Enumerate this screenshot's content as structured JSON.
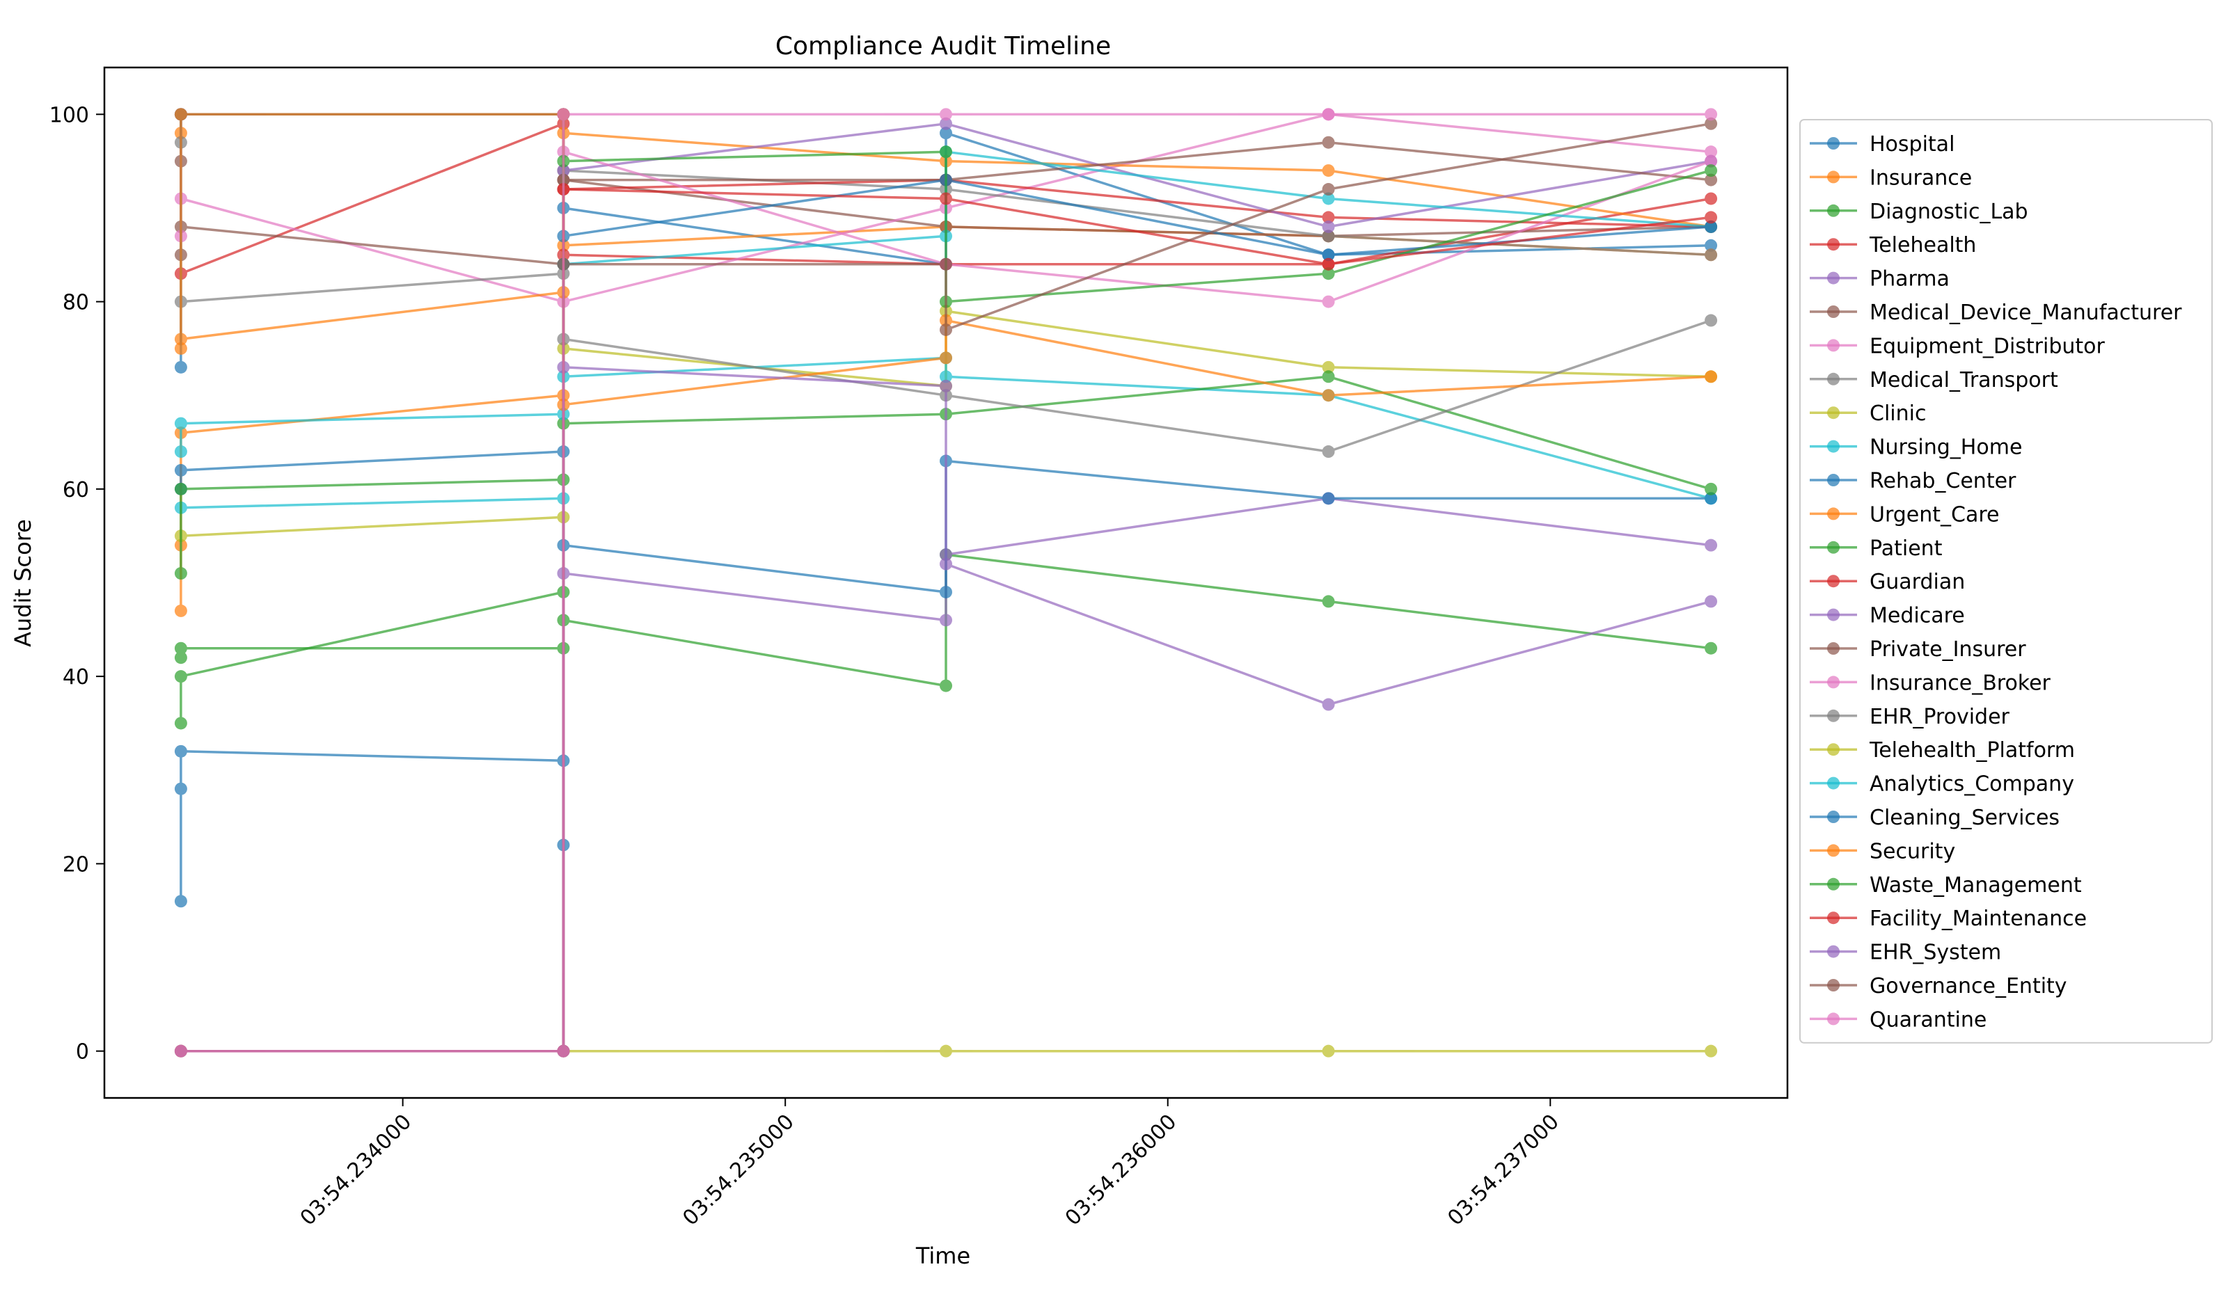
{
  "chart_data": {
    "type": "line",
    "title": "Compliance Audit Timeline",
    "xlabel": "Time",
    "ylabel": "Audit Score",
    "ylim": [
      -5,
      105
    ],
    "xlim": [
      -0.2,
      4.2
    ],
    "x_positions": [
      0,
      1,
      2,
      3,
      4
    ],
    "x_ticks": [
      {
        "value": 0.58,
        "label": "03:54.234000"
      },
      {
        "value": 1.58,
        "label": "03:54.235000"
      },
      {
        "value": 2.58,
        "label": "03:54.236000"
      },
      {
        "value": 3.58,
        "label": "03:54.237000"
      }
    ],
    "y_ticks": [
      0,
      20,
      40,
      60,
      80,
      100
    ],
    "grid": false,
    "legend_position": "right",
    "series": [
      {
        "name": "Hospital",
        "color": "#1f77b4",
        "points": [
          [
            0,
            16
          ],
          [
            0,
            28
          ],
          [
            0,
            32
          ],
          [
            1,
            31
          ],
          [
            1,
            22
          ],
          [
            1,
            0
          ],
          [
            1,
            90
          ],
          [
            2,
            84
          ],
          [
            2,
            98
          ],
          [
            3,
            85
          ],
          [
            4,
            86
          ]
        ]
      },
      {
        "name": "Insurance",
        "color": "#ff7f0e",
        "points": [
          [
            0,
            47
          ],
          [
            0,
            54
          ],
          [
            0,
            66
          ],
          [
            1,
            70
          ],
          [
            1,
            86
          ],
          [
            2,
            88
          ],
          [
            3,
            87
          ],
          [
            4,
            85
          ]
        ]
      },
      {
        "name": "Diagnostic_Lab",
        "color": "#2ca02c",
        "points": [
          [
            0,
            42
          ],
          [
            0,
            43
          ],
          [
            1,
            43
          ],
          [
            1,
            46
          ],
          [
            2,
            39
          ],
          [
            2,
            53
          ],
          [
            3,
            48
          ],
          [
            4,
            43
          ]
        ]
      },
      {
        "name": "Telehealth",
        "color": "#d62728",
        "points": [
          [
            0,
            83
          ],
          [
            1,
            99
          ],
          [
            1,
            85
          ],
          [
            2,
            84
          ],
          [
            3,
            84
          ],
          [
            4,
            91
          ]
        ]
      },
      {
        "name": "Pharma",
        "color": "#9467bd",
        "points": [
          [
            0,
            0
          ],
          [
            1,
            0
          ],
          [
            1,
            51
          ],
          [
            2,
            46
          ],
          [
            2,
            53
          ],
          [
            3,
            59
          ],
          [
            4,
            54
          ]
        ]
      },
      {
        "name": "Medical_Device_Manufacturer",
        "color": "#8c564b",
        "points": [
          [
            0,
            95
          ],
          [
            0,
            100
          ],
          [
            1,
            100
          ],
          [
            1,
            93
          ],
          [
            2,
            88
          ],
          [
            3,
            87
          ],
          [
            4,
            88
          ]
        ]
      },
      {
        "name": "Equipment_Distributor",
        "color": "#e377c2",
        "points": [
          [
            0,
            91
          ],
          [
            1,
            80
          ],
          [
            2,
            90
          ],
          [
            3,
            100
          ],
          [
            4,
            96
          ]
        ]
      },
      {
        "name": "Medical_Transport",
        "color": "#7f7f7f",
        "points": [
          [
            0,
            80
          ],
          [
            1,
            83
          ],
          [
            1,
            94
          ],
          [
            2,
            92
          ],
          [
            3,
            87
          ],
          [
            4,
            85
          ]
        ]
      },
      {
        "name": "Clinic",
        "color": "#bcbd22",
        "points": [
          [
            0,
            55
          ],
          [
            1,
            57
          ],
          [
            1,
            75
          ],
          [
            2,
            71
          ],
          [
            2,
            79
          ],
          [
            3,
            73
          ],
          [
            4,
            72
          ]
        ]
      },
      {
        "name": "Nursing_Home",
        "color": "#17becf",
        "points": [
          [
            0,
            58
          ],
          [
            1,
            59
          ],
          [
            1,
            72
          ],
          [
            2,
            74
          ],
          [
            2,
            72
          ],
          [
            3,
            70
          ],
          [
            4,
            59
          ]
        ]
      },
      {
        "name": "Rehab_Center",
        "color": "#1f77b4",
        "points": [
          [
            0,
            60
          ],
          [
            0,
            62
          ],
          [
            1,
            64
          ],
          [
            1,
            54
          ],
          [
            2,
            49
          ],
          [
            2,
            63
          ],
          [
            3,
            59
          ],
          [
            4,
            59
          ]
        ]
      },
      {
        "name": "Urgent_Care",
        "color": "#ff7f0e",
        "points": [
          [
            0,
            98
          ],
          [
            0,
            76
          ],
          [
            1,
            81
          ],
          [
            1,
            98
          ],
          [
            2,
            95
          ],
          [
            3,
            94
          ],
          [
            4,
            88
          ]
        ]
      },
      {
        "name": "Patient",
        "color": "#2ca02c",
        "points": [
          [
            0,
            35
          ],
          [
            0,
            40
          ],
          [
            1,
            49
          ],
          [
            1,
            67
          ],
          [
            2,
            68
          ],
          [
            3,
            72
          ],
          [
            4,
            60
          ]
        ]
      },
      {
        "name": "Guardian",
        "color": "#d62728",
        "points": [
          [
            0,
            100
          ],
          [
            1,
            100
          ],
          [
            1,
            92
          ],
          [
            2,
            93
          ],
          [
            3,
            89
          ],
          [
            4,
            88
          ]
        ]
      },
      {
        "name": "Medicare",
        "color": "#9467bd",
        "points": [
          [
            0,
            100
          ],
          [
            1,
            100
          ],
          [
            1,
            94
          ],
          [
            2,
            99
          ],
          [
            3,
            88
          ],
          [
            4,
            95
          ]
        ]
      },
      {
        "name": "Private_Insurer",
        "color": "#8c564b",
        "points": [
          [
            0,
            85
          ],
          [
            0,
            88
          ],
          [
            1,
            84
          ],
          [
            1,
            93
          ],
          [
            2,
            93
          ],
          [
            3,
            97
          ],
          [
            4,
            93
          ]
        ]
      },
      {
        "name": "Insurance_Broker",
        "color": "#e377c2",
        "points": [
          [
            0,
            87
          ],
          [
            0,
            100
          ],
          [
            1,
            100
          ],
          [
            1,
            96
          ],
          [
            2,
            84
          ],
          [
            3,
            80
          ],
          [
            4,
            95
          ]
        ]
      },
      {
        "name": "EHR_Provider",
        "color": "#7f7f7f",
        "points": [
          [
            0,
            97
          ],
          [
            0,
            100
          ],
          [
            1,
            100
          ],
          [
            1,
            76
          ],
          [
            2,
            70
          ],
          [
            3,
            64
          ],
          [
            4,
            78
          ]
        ]
      },
      {
        "name": "Telehealth_Platform",
        "color": "#bcbd22",
        "points": [
          [
            0,
            0
          ],
          [
            1,
            0
          ],
          [
            2,
            0
          ],
          [
            3,
            0
          ],
          [
            4,
            0
          ]
        ]
      },
      {
        "name": "Analytics_Company",
        "color": "#17becf",
        "points": [
          [
            0,
            64
          ],
          [
            0,
            67
          ],
          [
            1,
            68
          ],
          [
            1,
            84
          ],
          [
            2,
            87
          ],
          [
            2,
            96
          ],
          [
            3,
            91
          ],
          [
            4,
            88
          ]
        ]
      },
      {
        "name": "Cleaning_Services",
        "color": "#1f77b4",
        "points": [
          [
            0,
            73
          ],
          [
            0,
            100
          ],
          [
            1,
            100
          ],
          [
            1,
            87
          ],
          [
            2,
            93
          ],
          [
            3,
            85
          ],
          [
            4,
            88
          ]
        ]
      },
      {
        "name": "Security",
        "color": "#ff7f0e",
        "points": [
          [
            0,
            75
          ],
          [
            0,
            100
          ],
          [
            1,
            100
          ],
          [
            1,
            69
          ],
          [
            2,
            74
          ],
          [
            2,
            78
          ],
          [
            3,
            70
          ],
          [
            4,
            72
          ]
        ]
      },
      {
        "name": "Waste_Management",
        "color": "#2ca02c",
        "points": [
          [
            0,
            51
          ],
          [
            0,
            60
          ],
          [
            1,
            61
          ],
          [
            1,
            95
          ],
          [
            2,
            96
          ],
          [
            2,
            80
          ],
          [
            3,
            83
          ],
          [
            4,
            94
          ]
        ]
      },
      {
        "name": "Facility_Maintenance",
        "color": "#d62728",
        "points": [
          [
            0,
            0
          ],
          [
            1,
            0
          ],
          [
            1,
            92
          ],
          [
            2,
            91
          ],
          [
            3,
            84
          ],
          [
            4,
            89
          ]
        ]
      },
      {
        "name": "EHR_System",
        "color": "#9467bd",
        "points": [
          [
            0,
            0
          ],
          [
            1,
            0
          ],
          [
            1,
            73
          ],
          [
            2,
            71
          ],
          [
            2,
            52
          ],
          [
            3,
            37
          ],
          [
            4,
            48
          ]
        ]
      },
      {
        "name": "Governance_Entity",
        "color": "#8c564b",
        "points": [
          [
            0,
            0
          ],
          [
            1,
            0
          ],
          [
            1,
            84
          ],
          [
            2,
            84
          ],
          [
            2,
            77
          ],
          [
            3,
            92
          ],
          [
            4,
            99
          ]
        ]
      },
      {
        "name": "Quarantine",
        "color": "#e377c2",
        "points": [
          [
            0,
            0
          ],
          [
            1,
            0
          ],
          [
            1,
            100
          ],
          [
            2,
            100
          ],
          [
            3,
            100
          ],
          [
            4,
            100
          ]
        ]
      }
    ]
  }
}
